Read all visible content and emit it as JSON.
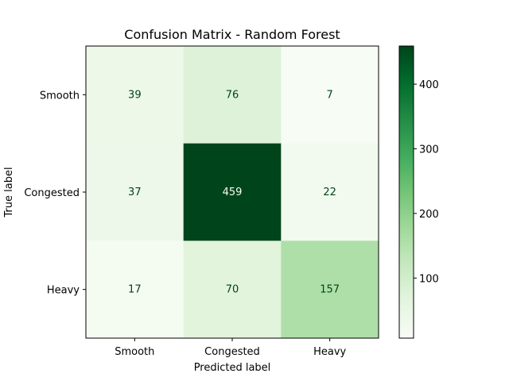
{
  "chart_data": {
    "type": "heatmap",
    "title": "Confusion Matrix - Random Forest",
    "xlabel": "Predicted label",
    "ylabel": "True label",
    "x_categories": [
      "Smooth",
      "Congested",
      "Heavy"
    ],
    "y_categories": [
      "Smooth",
      "Congested",
      "Heavy"
    ],
    "values": [
      [
        39,
        76,
        7
      ],
      [
        37,
        459,
        22
      ],
      [
        17,
        70,
        157
      ]
    ],
    "colormap": "Greens",
    "color_low": "#f7fcf5",
    "color_high": "#00441b",
    "text_color_light_cells": "#00441b",
    "text_color_dark_cells": "#f7fcf5",
    "colorbar": {
      "min": 7,
      "max": 459,
      "ticks": [
        100,
        200,
        300,
        400
      ]
    },
    "grid": false
  }
}
